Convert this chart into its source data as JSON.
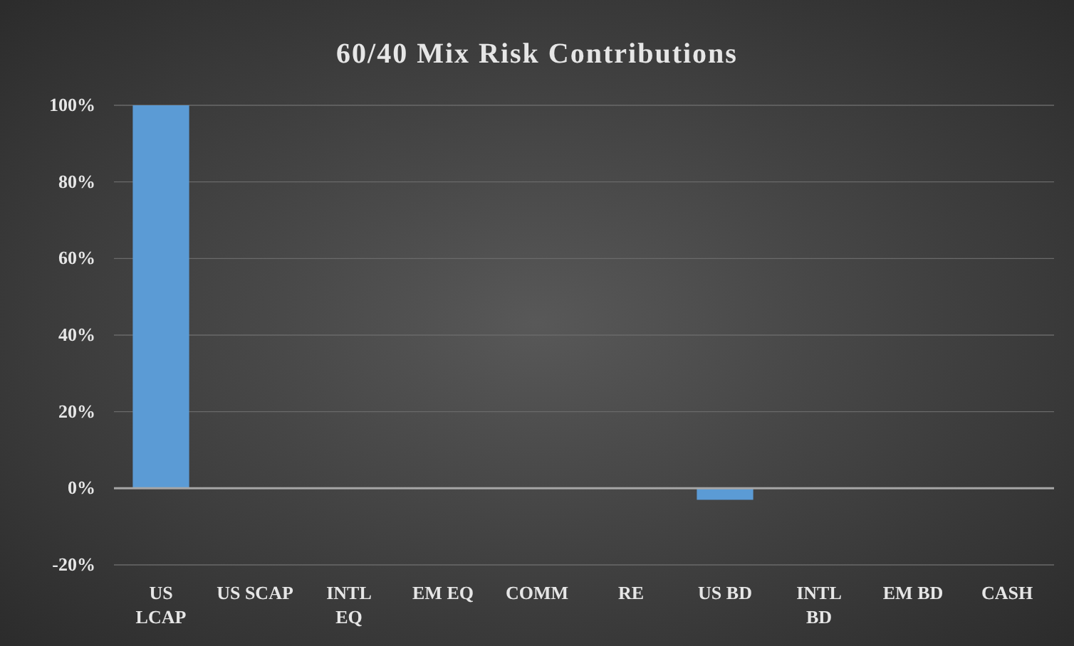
{
  "chart_data": {
    "type": "bar",
    "title": "60/40 Mix Risk Contributions",
    "categories": [
      "US\nLCAP",
      "US SCAP",
      "INTL\nEQ",
      "EM EQ",
      "COMM",
      "RE",
      "US BD",
      "INTL\nBD",
      "EM BD",
      "CASH"
    ],
    "values": [
      100,
      0,
      0,
      0,
      0,
      0,
      -3,
      0,
      0,
      0
    ],
    "color": "#5b9bd5",
    "ylim": [
      -20,
      100
    ],
    "yticks": [
      {
        "value": -20,
        "label": "-20%"
      },
      {
        "value": 0,
        "label": "0%"
      },
      {
        "value": 20,
        "label": "20%"
      },
      {
        "value": 40,
        "label": "40%"
      },
      {
        "value": 60,
        "label": "60%"
      },
      {
        "value": 80,
        "label": "80%"
      },
      {
        "value": 100,
        "label": "100%"
      }
    ],
    "grid": "y"
  }
}
